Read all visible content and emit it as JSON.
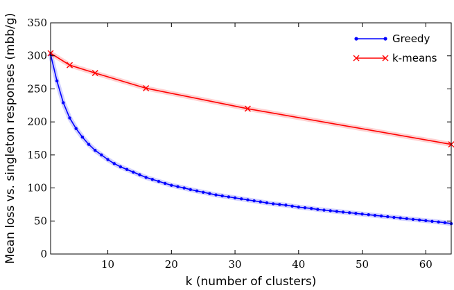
{
  "chart_data": {
    "type": "line",
    "title": "",
    "xlabel": "k (number of clusters)",
    "ylabel": "Mean loss vs. singleton responses (mbb/g)",
    "xlim": [
      1,
      64
    ],
    "ylim": [
      0,
      350
    ],
    "x_ticks": [
      10,
      20,
      30,
      40,
      50,
      60
    ],
    "y_ticks": [
      0,
      50,
      100,
      150,
      200,
      250,
      300,
      350
    ],
    "grid": false,
    "legend_position": "top-right",
    "series": [
      {
        "name": "Greedy",
        "color": "#0000ff",
        "marker": "dot",
        "x": [
          1,
          2,
          3,
          4,
          5,
          6,
          7,
          8,
          9,
          10,
          11,
          12,
          13,
          14,
          15,
          16,
          17,
          18,
          19,
          20,
          21,
          22,
          23,
          24,
          25,
          26,
          27,
          28,
          29,
          30,
          31,
          32,
          33,
          34,
          35,
          36,
          37,
          38,
          39,
          40,
          41,
          42,
          43,
          44,
          45,
          46,
          47,
          48,
          49,
          50,
          51,
          52,
          53,
          54,
          55,
          56,
          57,
          58,
          59,
          60,
          61,
          62,
          63,
          64
        ],
        "y": [
          302,
          262,
          229,
          206,
          190,
          177,
          166,
          157,
          150,
          143,
          137,
          132,
          128,
          124,
          120,
          116,
          113,
          110,
          107,
          104,
          102,
          100,
          97.5,
          95.5,
          93.5,
          91.5,
          89.5,
          88,
          86.5,
          85,
          83.5,
          82,
          80.5,
          79,
          77.5,
          76,
          75,
          74,
          72.5,
          71,
          70,
          69,
          67.5,
          66.5,
          65.5,
          64.5,
          63.5,
          62.5,
          61.5,
          60.5,
          59.5,
          58.5,
          57.5,
          56.5,
          55.5,
          54.5,
          53.5,
          52.5,
          51.5,
          50.5,
          49.5,
          48.5,
          47.5,
          46
        ]
      },
      {
        "name": "k-means",
        "color": "#ff0000",
        "marker": "x",
        "x": [
          1,
          4,
          8,
          16,
          32,
          64
        ],
        "y": [
          304,
          286,
          274,
          251,
          220,
          166
        ]
      }
    ]
  }
}
